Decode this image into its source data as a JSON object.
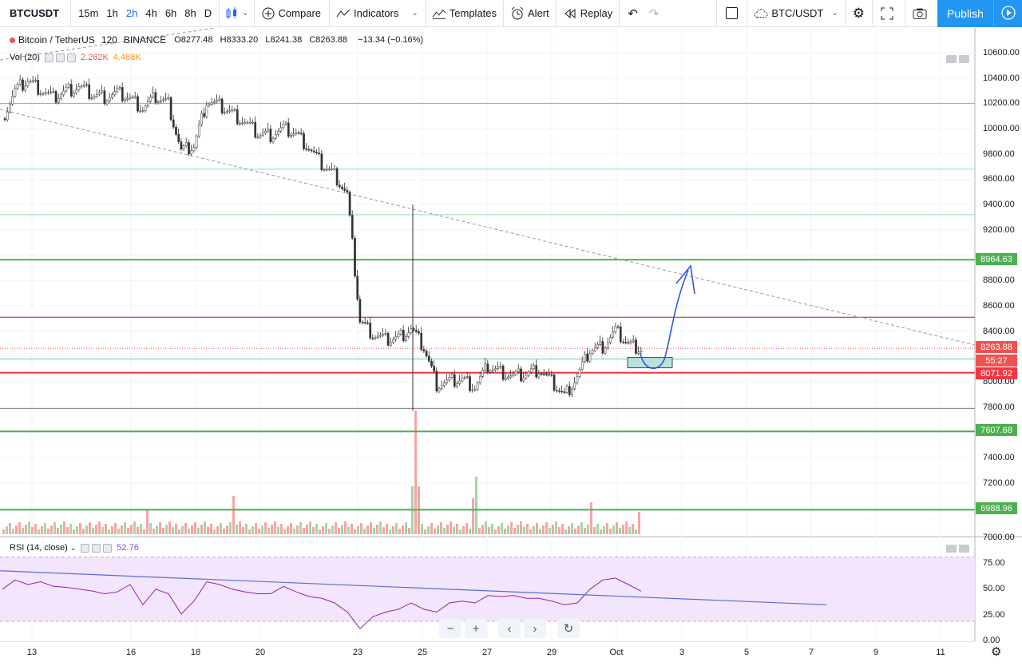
{
  "toolbar": {
    "symbol": "BTCUSDT",
    "timeframes": [
      "15m",
      "1h",
      "2h",
      "4h",
      "6h",
      "8h",
      "D"
    ],
    "active_timeframe": "2h",
    "compare_label": "Compare",
    "indicators_label": "Indicators",
    "templates_label": "Templates",
    "alert_label": "Alert",
    "replay_label": "Replay",
    "pair_label": "BTC/USDT",
    "publish_label": "Publish"
  },
  "legend": {
    "title": "Bitcoin / TetherUS",
    "interval": "120",
    "exchange": "BINANCE",
    "open": "O8277.48",
    "high": "H8333.20",
    "low": "L8241.38",
    "close": "C8263.88",
    "change": "−13.34 (−0.16%)"
  },
  "volume_legend": {
    "name": "Vol (20)",
    "v1": "2.262K",
    "v2": "4.488K"
  },
  "rsi_legend": {
    "name": "RSI (14, close)",
    "value": "52.76"
  },
  "price_axis": [
    "10600.00",
    "10400.00",
    "10200.00",
    "10000.00",
    "9800.00",
    "9600.00",
    "9400.00",
    "9200.00",
    "8800.00",
    "8600.00",
    "8400.00",
    "8000.00",
    "7800.00",
    "7400.00",
    "7200.00",
    "7000.00"
  ],
  "rsi_axis": [
    "75.00",
    "50.00",
    "25.00",
    "0.00"
  ],
  "time_axis": [
    "13",
    "16",
    "18",
    "20",
    "23",
    "25",
    "27",
    "29",
    "Oct",
    "3",
    "5",
    "7",
    "9",
    "11"
  ],
  "price_labels": {
    "level_8964": "8964.63",
    "last_price": "8263.88",
    "countdown": "55:27",
    "level_8071": "8071.92",
    "level_7607": "7607.68",
    "level_6988": "6988.96"
  },
  "colors": {
    "up": "#26a69a",
    "down": "#ef5350",
    "green_line": "#4caf50",
    "red_line": "#f23645",
    "accent": "#2962ff",
    "rsi_fill": "#f3e5fb",
    "drawing": "#3355dd"
  },
  "chart_data": {
    "type": "candlestick",
    "x_ticks": [
      "13",
      "16",
      "18",
      "20",
      "23",
      "25",
      "27",
      "29",
      "Oct",
      "3",
      "5",
      "7",
      "9",
      "11"
    ],
    "ylim": [
      6900,
      10750
    ],
    "horizontal_levels": [
      {
        "value": 10200,
        "color": "#64b5f6"
      },
      {
        "value": 9680,
        "color": "#80deea"
      },
      {
        "value": 9320,
        "color": "#a5d6a7"
      },
      {
        "value": 8964.63,
        "color": "#4caf50"
      },
      {
        "value": 8510,
        "color": "#a52714"
      },
      {
        "value": 8180,
        "color": "#81c784"
      },
      {
        "value": 8071.92,
        "color": "#f23645"
      },
      {
        "value": 7790,
        "color": "#787b86"
      },
      {
        "value": 7607.68,
        "color": "#4caf50"
      },
      {
        "value": 6988.96,
        "color": "#4caf50"
      }
    ],
    "close_path": [
      10080,
      10300,
      10380,
      10310,
      10240,
      10300,
      10330,
      10270,
      10250,
      10280,
      10240,
      10160,
      10250,
      10200,
      9820,
      9860,
      10220,
      10180,
      10120,
      10050,
      9960,
      9950,
      10000,
      9960,
      9850,
      9720,
      9640,
      9480,
      8480,
      8380,
      8330,
      8350,
      8420,
      8270,
      7980,
      8000,
      8020,
      7960,
      8120,
      8080,
      8040,
      8060,
      8100,
      8000,
      7890,
      8040,
      8250,
      8280,
      8400,
      8300,
      8263.88
    ],
    "rsi_values": [
      55,
      65,
      60,
      63,
      58,
      57,
      55,
      53,
      50,
      52,
      60,
      38,
      55,
      50,
      28,
      42,
      63,
      60,
      55,
      52,
      50,
      50,
      58,
      52,
      47,
      45,
      40,
      30,
      12,
      25,
      30,
      33,
      40,
      33,
      30,
      40,
      42,
      40,
      48,
      47,
      48,
      45,
      45,
      42,
      38,
      40,
      55,
      65,
      67,
      60,
      52.76
    ],
    "rsi_ylim": [
      0,
      100
    ]
  }
}
